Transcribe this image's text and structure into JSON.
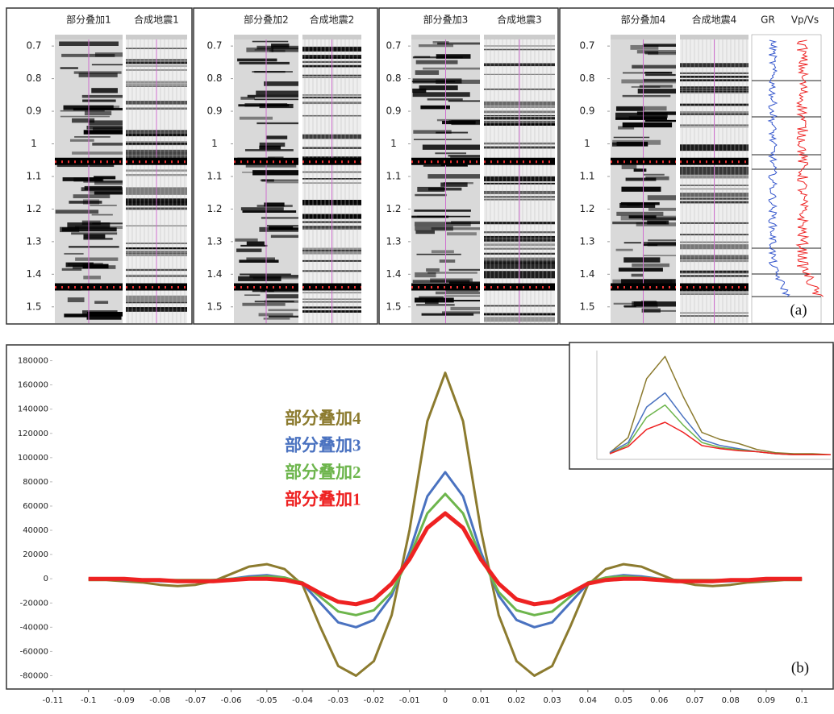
{
  "seismic": {
    "label": "(a)",
    "ylim": [
      0.67,
      1.55
    ],
    "time_ticks": [
      0.7,
      0.8,
      0.9,
      1,
      1.1,
      1.2,
      1.3,
      1.4,
      1.5
    ],
    "panels": [
      {
        "titles": [
          "部分叠加1",
          "合成地震1"
        ]
      },
      {
        "titles": [
          "部分叠加2",
          "合成地震2"
        ]
      },
      {
        "titles": [
          "部分叠加3",
          "合成地震3"
        ]
      },
      {
        "titles": [
          "部分叠加4",
          "合成地震4"
        ],
        "logs": [
          "GR",
          "Vp/Vs"
        ]
      }
    ]
  },
  "chart_data": [
    {
      "type": "line",
      "label": "(b)",
      "x": [
        -0.1,
        -0.095,
        -0.09,
        -0.085,
        -0.08,
        -0.075,
        -0.07,
        -0.065,
        -0.06,
        -0.055,
        -0.05,
        -0.045,
        -0.04,
        -0.035,
        -0.03,
        -0.025,
        -0.02,
        -0.015,
        -0.01,
        -0.005,
        0,
        0.005,
        0.01,
        0.015,
        0.02,
        0.025,
        0.03,
        0.035,
        0.04,
        0.045,
        0.05,
        0.055,
        0.06,
        0.065,
        0.07,
        0.075,
        0.08,
        0.085,
        0.09,
        0.095,
        0.1
      ],
      "xlim": [
        -0.123,
        0.109
      ],
      "xticks": [
        -0.11,
        -0.1,
        -0.09,
        -0.08,
        -0.07,
        -0.06,
        -0.05,
        -0.04,
        -0.03,
        -0.02,
        -0.01,
        0,
        0.01,
        0.02,
        0.03,
        0.04,
        0.05,
        0.06,
        0.07,
        0.08,
        0.09,
        0.1
      ],
      "ylim": [
        -91000,
        193000
      ],
      "yticks": [
        -80000,
        -60000,
        -40000,
        -20000,
        0,
        20000,
        40000,
        60000,
        80000,
        100000,
        120000,
        140000,
        160000,
        180000
      ],
      "series": [
        {
          "name": "部分叠加4",
          "color": "#8c7b2f",
          "values": [
            -1000,
            -1000,
            -2000,
            -3000,
            -5000,
            -6000,
            -5000,
            -2000,
            4000,
            10000,
            12000,
            8000,
            -5000,
            -40000,
            -72000,
            -80000,
            -68000,
            -30000,
            40000,
            130000,
            170000,
            130000,
            40000,
            -30000,
            -68000,
            -80000,
            -72000,
            -40000,
            -5000,
            8000,
            12000,
            10000,
            4000,
            -2000,
            -5000,
            -6000,
            -5000,
            -3000,
            -2000,
            -1000,
            -1000
          ]
        },
        {
          "name": "部分叠加3",
          "color": "#4a72c0",
          "values": [
            0,
            0,
            -1000,
            -1000,
            -2000,
            -2000,
            -2000,
            -1000,
            0,
            2000,
            3000,
            1000,
            -4000,
            -20000,
            -36000,
            -40000,
            -34000,
            -14000,
            22000,
            68000,
            88000,
            68000,
            22000,
            -14000,
            -34000,
            -40000,
            -36000,
            -20000,
            -4000,
            1000,
            3000,
            2000,
            0,
            -1000,
            -2000,
            -2000,
            -2000,
            -1000,
            -1000,
            0,
            0
          ]
        },
        {
          "name": "部分叠加2",
          "color": "#6db54c",
          "values": [
            0,
            0,
            0,
            -1000,
            -1000,
            -1000,
            -1000,
            -1000,
            0,
            1000,
            2000,
            1000,
            -3000,
            -15000,
            -27000,
            -30000,
            -26000,
            -11000,
            18000,
            54000,
            70000,
            54000,
            18000,
            -11000,
            -26000,
            -30000,
            -27000,
            -15000,
            -3000,
            1000,
            2000,
            1000,
            0,
            -1000,
            -1000,
            -1000,
            -1000,
            -1000,
            0,
            0,
            0
          ]
        },
        {
          "name": "部分叠加1",
          "color": "#ee2222",
          "values": [
            0,
            0,
            0,
            -1000,
            -1000,
            -2000,
            -2000,
            -2000,
            -1000,
            0,
            0,
            -1000,
            -4000,
            -12000,
            -19000,
            -21000,
            -17000,
            -4000,
            16000,
            42000,
            54000,
            42000,
            16000,
            -4000,
            -17000,
            -21000,
            -19000,
            -12000,
            -4000,
            -1000,
            0,
            0,
            -1000,
            -2000,
            -2000,
            -2000,
            -1000,
            -1000,
            0,
            0,
            0
          ]
        }
      ]
    },
    {
      "type": "line",
      "ylim": [
        0,
        105
      ],
      "series": [
        {
          "name": "部分叠加4",
          "color": "#8c7b2f",
          "values": [
            5,
            20,
            78,
            100,
            60,
            25,
            18,
            14,
            8,
            5,
            4,
            4,
            3
          ]
        },
        {
          "name": "部分叠加3",
          "color": "#4a72c0",
          "values": [
            5,
            15,
            50,
            64,
            40,
            18,
            12,
            9,
            6,
            4,
            3,
            3,
            3
          ]
        },
        {
          "name": "部分叠加2",
          "color": "#6db54c",
          "values": [
            4,
            13,
            40,
            52,
            32,
            15,
            10,
            8,
            6,
            4,
            3,
            3,
            3
          ]
        },
        {
          "name": "部分叠加1",
          "color": "#ee2222",
          "values": [
            4,
            11,
            28,
            35,
            25,
            12,
            9,
            7,
            6,
            4,
            3,
            3,
            3
          ]
        }
      ]
    }
  ]
}
